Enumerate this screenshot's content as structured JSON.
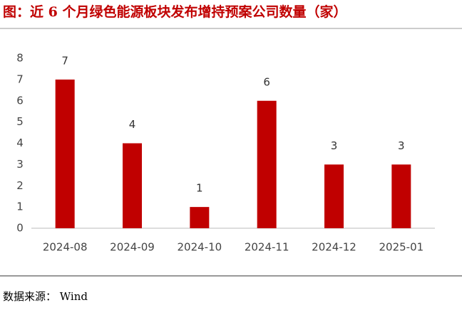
{
  "chart_data": {
    "type": "bar",
    "title": "图：近 6 个月绿色能源板块发布增持预案公司数量（家）",
    "categories": [
      "2024-08",
      "2024-09",
      "2024-10",
      "2024-11",
      "2024-12",
      "2025-01"
    ],
    "values": [
      7,
      4,
      1,
      6,
      3,
      3
    ],
    "color": "#c00000",
    "ylim": [
      0,
      8
    ],
    "yticks": [
      0,
      1,
      2,
      3,
      4,
      5,
      6,
      7,
      8
    ],
    "grid": false,
    "source": "数据来源：  Wind"
  }
}
